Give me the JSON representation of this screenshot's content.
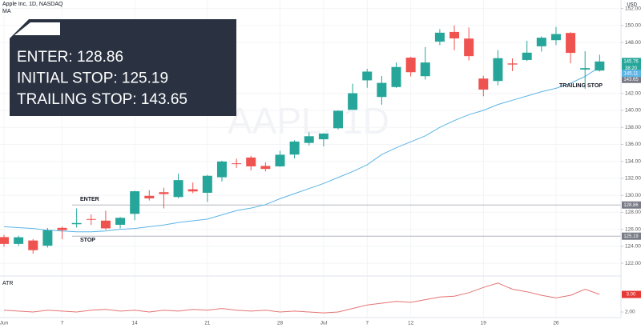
{
  "chart_data": {
    "type": "candlestick",
    "title": "Apple Inc, 1D, NASDAQ",
    "currency": "USD",
    "countdown": "38:20",
    "watermark": "AAPL, 1D",
    "categories": [
      "Jun",
      null,
      null,
      null,
      "7",
      null,
      null,
      null,
      null,
      "14",
      null,
      null,
      null,
      null,
      "21",
      null,
      null,
      null,
      null,
      "28",
      null,
      null,
      "Jul",
      null,
      null,
      "7",
      null,
      null,
      "12",
      null,
      null,
      null,
      null,
      "19",
      null,
      null,
      null,
      null,
      "26",
      null,
      null,
      null
    ],
    "open": [
      125.08,
      124.28,
      124.68,
      124.07,
      126.17,
      126.6,
      127.21,
      127.02,
      126.53,
      127.82,
      129.94,
      130.37,
      129.8,
      130.71,
      130.3,
      132.13,
      133.77,
      134.45,
      133.46,
      133.41,
      134.8,
      136.17,
      136.6,
      137.9,
      140.07,
      143.54,
      141.58,
      142.75,
      146.21,
      144.03,
      148.1,
      149.24,
      148.46,
      143.75,
      143.46,
      145.53,
      145.94,
      147.55,
      148.27,
      149.12,
      144.81,
      144.69
    ],
    "high": [
      125.35,
      125.24,
      124.85,
      126.16,
      126.32,
      128.46,
      127.75,
      128.19,
      127.44,
      130.54,
      130.6,
      130.89,
      132.55,
      131.51,
      132.41,
      134.08,
      134.32,
      134.64,
      133.89,
      135.25,
      136.49,
      137.41,
      137.33,
      140.0,
      143.15,
      144.89,
      144.06,
      145.65,
      146.32,
      147.46,
      149.57,
      150.0,
      149.76,
      144.07,
      147.1,
      146.13,
      148.2,
      148.72,
      149.83,
      149.21,
      146.97,
      146.55
    ],
    "low": [
      123.94,
      124.05,
      123.13,
      123.85,
      124.83,
      126.21,
      126.52,
      125.94,
      126.1,
      127.07,
      129.39,
      128.46,
      129.65,
      130.24,
      129.21,
      131.62,
      133.23,
      132.93,
      132.81,
      133.35,
      134.35,
      135.87,
      135.76,
      137.75,
      140.07,
      142.66,
      140.67,
      142.65,
      144.0,
      143.63,
      147.68,
      147.09,
      145.88,
      141.67,
      142.96,
      144.63,
      145.81,
      146.92,
      147.7,
      145.55,
      142.54,
      144.58
    ],
    "close": [
      124.28,
      125.06,
      123.54,
      125.89,
      125.9,
      126.74,
      127.13,
      126.11,
      127.35,
      130.48,
      129.64,
      130.15,
      131.79,
      130.46,
      132.3,
      133.98,
      133.7,
      133.41,
      133.11,
      134.78,
      136.33,
      136.96,
      137.27,
      139.96,
      142.02,
      144.57,
      143.24,
      145.11,
      144.5,
      145.64,
      149.15,
      148.48,
      146.39,
      142.45,
      146.15,
      145.4,
      146.8,
      148.56,
      148.99,
      146.77,
      144.98,
      145.76
    ],
    "up_color": "#26a69a",
    "down_color": "#ef5350",
    "ma": {
      "name": "MA",
      "color": "#5db4e6",
      "values": [
        126.3,
        126.2,
        126.1,
        125.9,
        125.8,
        125.7,
        125.7,
        125.8,
        126.0,
        126.1,
        126.3,
        126.5,
        126.8,
        127.0,
        127.2,
        127.7,
        128.2,
        128.5,
        128.9,
        129.6,
        130.2,
        130.8,
        131.4,
        132.1,
        132.8,
        133.6,
        134.8,
        135.6,
        136.3,
        137.0,
        138.0,
        138.8,
        139.5,
        140.0,
        140.7,
        141.2,
        141.7,
        142.2,
        142.6,
        143.2,
        144.0,
        145.11
      ]
    },
    "ylim": [
      120.5,
      153.0
    ],
    "yticks": [
      {
        "value": 122,
        "label": "122.00"
      },
      {
        "value": 124,
        "label": "124.00"
      },
      {
        "value": 126,
        "label": "126.00"
      },
      {
        "value": 128,
        "label": "128.00"
      },
      {
        "value": 130,
        "label": "130.00"
      },
      {
        "value": 132,
        "label": "132.00"
      },
      {
        "value": 134,
        "label": "134.00"
      },
      {
        "value": 136,
        "label": "136.00"
      },
      {
        "value": 138,
        "label": "138.00"
      },
      {
        "value": 140,
        "label": "140.00"
      },
      {
        "value": 142,
        "label": "142.00"
      },
      {
        "value": 148,
        "label": "148.00"
      },
      {
        "value": 150,
        "label": "150.00"
      },
      {
        "value": 152,
        "label": "152.00"
      }
    ],
    "levels": [
      {
        "name": "ENTER",
        "value": 128.86
      },
      {
        "name": "STOP",
        "value": 125.19
      },
      {
        "name": "TRAILING STOP",
        "value": 143.65
      }
    ],
    "info_box": [
      "ENTER:  128.86",
      "INITIAL STOP: 125.19",
      "TRAILING STOP: 143.65"
    ],
    "atr": {
      "name": "ATR",
      "color": "#e57373",
      "values": [
        2.1,
        2.05,
        2.0,
        2.1,
        2.05,
        2.0,
        2.1,
        2.15,
        2.05,
        2.1,
        2.0,
        2.1,
        2.05,
        2.15,
        2.1,
        2.2,
        2.1,
        2.05,
        2.1,
        2.0,
        2.05,
        2.0,
        1.95,
        2.0,
        2.2,
        2.4,
        2.5,
        2.6,
        2.55,
        2.7,
        2.85,
        2.9,
        3.1,
        3.4,
        3.65,
        3.3,
        3.15,
        2.95,
        2.8,
        2.95,
        3.3,
        3.0
      ],
      "last_label": "3.00",
      "ylim": [
        1.68,
        4.05
      ],
      "yticks": [
        {
          "value": 2,
          "label": "2.00"
        }
      ]
    }
  }
}
